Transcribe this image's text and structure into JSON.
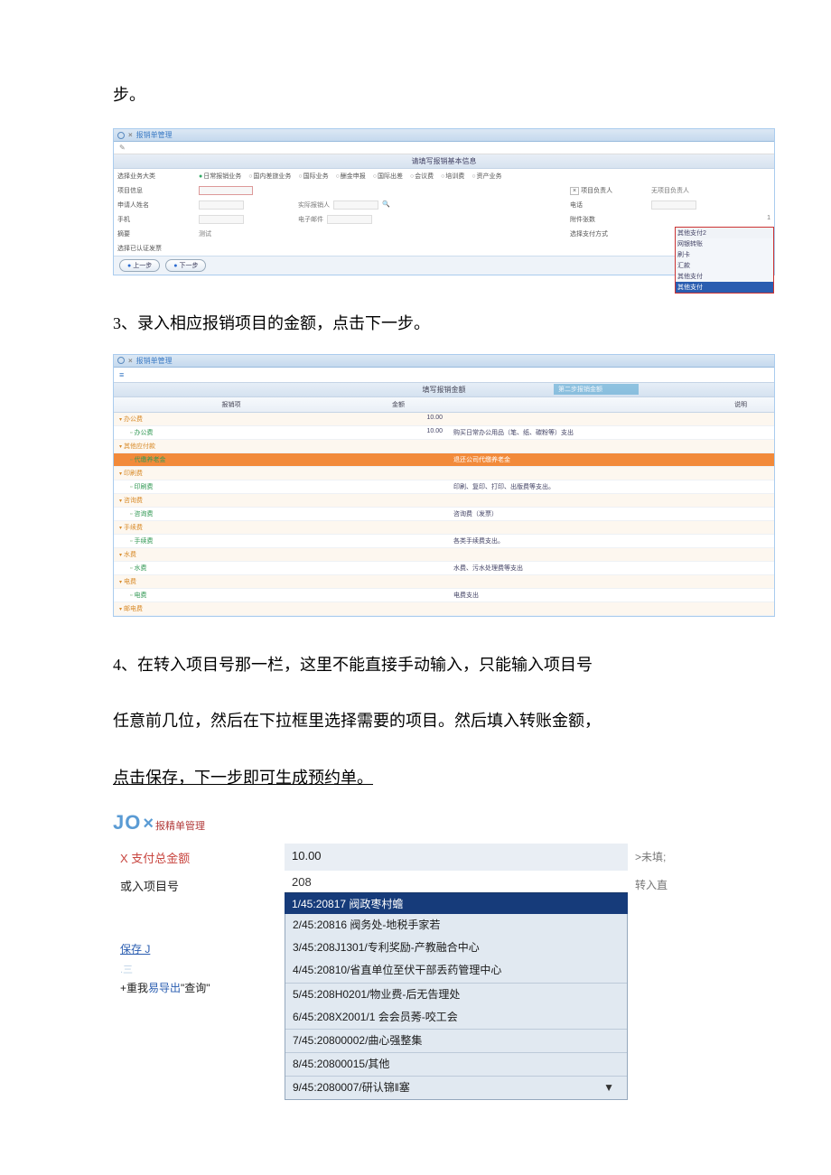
{
  "doc": {
    "line0": "步。",
    "line3": "3、录入相应报销项目的金额，点击下一步。",
    "line4a": "4、在转入项目号那一栏，这里不能直接手动输入，只能输入项目号",
    "line4b": "任意前几位，然后在下拉框里选择需要的项目。然后填入转账金额，",
    "line4c": "点击保存，下一步即可生成预约单。"
  },
  "shot1": {
    "headerLabel": "报销单管理",
    "titlebar": "请填写报销基本信息",
    "radios": [
      "日常报销业务",
      "国内差旅业务",
      "国际业务",
      "酬金申报",
      "国际出差",
      "会议费",
      "培训费",
      "资产业务"
    ],
    "rows": {
      "r1l": "选择业务大类",
      "r2l": "项目信息",
      "r2r": "项目负责人",
      "r2r2": "无项目负责人",
      "r3l": "申请人姓名",
      "r3m": "实际报销人",
      "r3r": "电话",
      "r4l": "手机",
      "r4m": "电子邮件",
      "r4r": "附件张数",
      "r5l": "摘要",
      "r5v": "测试",
      "r5r": "选择支付方式",
      "r6l": "选择已认证发票"
    },
    "dropdown": {
      "head": "其他支付2",
      "items": [
        "网银转账",
        "刷卡",
        "汇款",
        "其他支付"
      ],
      "sel": "其他支付"
    },
    "btn1": "上一步",
    "btn2": "下一步"
  },
  "shot2": {
    "headerLabel": "报销单管理",
    "titlebar": "填写报销金额",
    "badge": "第二步报销金额",
    "cols": [
      "报销项",
      "金额",
      "说明"
    ],
    "rows": [
      {
        "type": "grp",
        "name": "办公费",
        "amt": "10.00",
        "desc": ""
      },
      {
        "type": "leaf",
        "name": "办公费",
        "amt": "10.00",
        "desc": "购买日常办公用品（笔、纸、碳粉等）支出"
      },
      {
        "type": "grp",
        "name": "其他应付款",
        "amt": "",
        "desc": ""
      },
      {
        "type": "hl",
        "name": "代缴养老金",
        "amt": "",
        "desc": "退还公司代缴养老金"
      },
      {
        "type": "grp",
        "name": "印刷费",
        "amt": "",
        "desc": ""
      },
      {
        "type": "leaf",
        "name": "印刷费",
        "amt": "",
        "desc": "印刷、复印、打印、出版费等支出。"
      },
      {
        "type": "grp",
        "name": "咨询费",
        "amt": "",
        "desc": ""
      },
      {
        "type": "leaf",
        "name": "咨询费",
        "amt": "",
        "desc": "咨询费（发票）"
      },
      {
        "type": "grp",
        "name": "手续费",
        "amt": "",
        "desc": ""
      },
      {
        "type": "leaf",
        "name": "手续费",
        "amt": "",
        "desc": "各类手续费支出。"
      },
      {
        "type": "grp",
        "name": "水费",
        "amt": "",
        "desc": ""
      },
      {
        "type": "leaf",
        "name": "水费",
        "amt": "",
        "desc": "水费、污水处理费等支出"
      },
      {
        "type": "grp",
        "name": "电费",
        "amt": "",
        "desc": ""
      },
      {
        "type": "leaf",
        "name": "电费",
        "amt": "",
        "desc": "电费支出"
      },
      {
        "type": "grp",
        "name": "邮电费",
        "amt": "",
        "desc": ""
      }
    ]
  },
  "shot3": {
    "brand_a": "JO",
    "brand_x": "×",
    "brand_suffix": "报精单管理",
    "row1": {
      "label": "X 支付总金额",
      "value": "10.00",
      "right": ">未填;"
    },
    "row2": {
      "label": "或入项目号",
      "value": "208",
      "right": "转入直"
    },
    "links": {
      "save": "保存 J"
    },
    "thin": ".三",
    "export_prefix": "+重我",
    "export_link": "易导出",
    "export_quote": "\"查询\"",
    "dd_selected": "1/45:20817 阀政枣村蟾",
    "options": [
      "2/45:20816 阀务处-地税手家若",
      "3/45:208J1301/专利奖励-产教融合中心",
      "4/45:20810/省直单位至伏干部丢药管理中心",
      "5/45:208H0201/物业费-后无告理处",
      "6/45:208X2001/1 会会员莠-咬工会",
      "7/45:20800002/曲心强整集",
      "8/45:20800015/其他",
      "9/45:2080007/研认锦‖塞"
    ]
  }
}
